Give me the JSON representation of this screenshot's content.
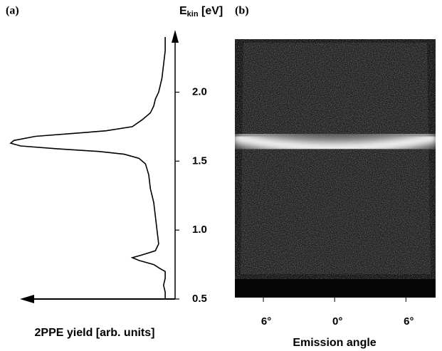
{
  "chart_data": [
    {
      "type": "line",
      "panel_label": "(a)",
      "ylabel_parts": [
        "E",
        "kin",
        " [eV]"
      ],
      "xlabel": "2PPE yield [arb. units]",
      "x": [
        0.5,
        0.55,
        0.6,
        0.65,
        0.7,
        0.72,
        0.75,
        0.78,
        0.8,
        0.82,
        0.85,
        0.9,
        1.0,
        1.1,
        1.2,
        1.3,
        1.4,
        1.48,
        1.52,
        1.55,
        1.57,
        1.59,
        1.61,
        1.63,
        1.65,
        1.68,
        1.7,
        1.72,
        1.75,
        1.8,
        1.85,
        1.9,
        1.95,
        2.0,
        2.1,
        2.2,
        2.3,
        2.4
      ],
      "values": [
        0.06,
        0.06,
        0.07,
        0.06,
        0.06,
        0.09,
        0.13,
        0.22,
        0.26,
        0.2,
        0.12,
        0.1,
        0.11,
        0.12,
        0.13,
        0.15,
        0.16,
        0.18,
        0.22,
        0.31,
        0.46,
        0.72,
        0.94,
        1.0,
        0.98,
        0.85,
        0.63,
        0.42,
        0.26,
        0.2,
        0.15,
        0.13,
        0.12,
        0.1,
        0.08,
        0.07,
        0.06,
        0.06
      ],
      "xlim": [
        0.5,
        2.4
      ],
      "ylim": [
        0,
        1
      ],
      "xticks": [
        0.5,
        {
          "value": 1.0,
          "label": "1.0"
        },
        1.5,
        {
          "value": 2.0,
          "label": "2.0"
        }
      ],
      "color": "#000000"
    },
    {
      "type": "image",
      "panel_label": "(b)",
      "xlabel": "Emission angle",
      "xlim": [
        -8.4,
        8.5
      ],
      "xticks": [
        {
          "value": -6,
          "label": "6°"
        },
        {
          "value": 0,
          "label": "0°"
        },
        {
          "value": 6,
          "label": "6°"
        }
      ]
    }
  ]
}
